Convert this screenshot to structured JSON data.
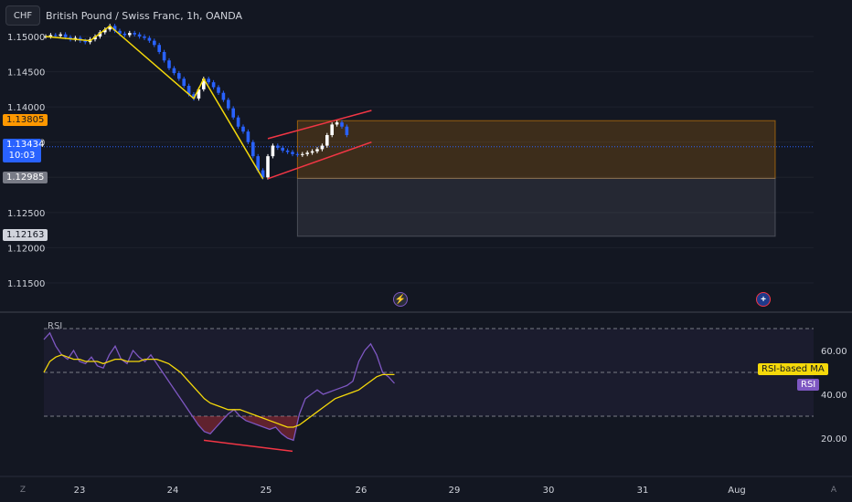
{
  "header": {
    "symbol_button": "CHF",
    "title": "British Pound / Swiss Franc, 1h, OANDA"
  },
  "colors": {
    "background": "#131722",
    "up_candle": "#ffffff",
    "down_candle": "#2962ff",
    "zigzag": "#f5d90a",
    "channel": "#f23645",
    "zone_upper": "#ff9800",
    "rsi_line": "#7e57c2",
    "rsi_ma": "#f5d90a",
    "divergence": "#f23645"
  },
  "price_labels": {
    "top_zone": "1.13805",
    "current_price": "1.13434",
    "countdown": "10:03",
    "mid_zone": "1.12985",
    "bottom_zone": "1.12163"
  },
  "rsi_labels": {
    "title": "RSI",
    "ma_tag": "RSI-based MA",
    "rsi_tag": "RSI"
  },
  "corner": {
    "left": "Z",
    "right": "A"
  },
  "icons": {
    "event_1": "lightning-icon",
    "event_2": "uk-flag-icon"
  },
  "chart_data": [
    {
      "type": "candlestick",
      "title": "British Pound / Swiss Franc, 1h, OANDA",
      "y_ticks": [
        "1.15000",
        "1.14500",
        "1.14000",
        "1.13500",
        "1.13000",
        "1.12500",
        "1.12000",
        "1.11500"
      ],
      "ylim": [
        1.1115,
        1.1525
      ],
      "x_ticks": [
        "23",
        "24",
        "25",
        "26",
        "29",
        "30",
        "31",
        "Aug"
      ],
      "series": [
        {
          "values": [
            1.15,
            1.1502,
            1.1501,
            1.1503,
            1.1499,
            1.1496,
            1.1498,
            1.1494,
            1.1492,
            1.1496,
            1.15,
            1.1506,
            1.151,
            1.1515,
            1.1508,
            1.1504,
            1.1502,
            1.1505,
            1.1503,
            1.15,
            1.1498,
            1.1494,
            1.1488,
            1.1478,
            1.1466,
            1.1455,
            1.1448,
            1.144,
            1.143,
            1.1418,
            1.1412,
            1.1425,
            1.144,
            1.1435,
            1.1428,
            1.142,
            1.141,
            1.1398,
            1.1385,
            1.1372,
            1.1365,
            1.135,
            1.133,
            1.131,
            1.13,
            1.133,
            1.1345,
            1.1342,
            1.1338,
            1.1336,
            1.1333,
            1.1332,
            1.1333,
            1.1335,
            1.1337,
            1.134,
            1.1345,
            1.136,
            1.1375,
            1.1378,
            1.1372,
            1.136
          ]
        }
      ],
      "zigzag": [
        [
          0,
          1.15
        ],
        [
          9,
          1.1494
        ],
        [
          13,
          1.1515
        ],
        [
          30,
          1.1412
        ],
        [
          32,
          1.144
        ],
        [
          44,
          1.1298
        ]
      ],
      "channel": {
        "upper": [
          [
            45,
            1.1355
          ],
          [
            66,
            1.1395
          ]
        ],
        "lower": [
          [
            45,
            1.1298
          ],
          [
            66,
            1.135
          ]
        ]
      },
      "zones": [
        {
          "from": 1.13805,
          "to": 1.12985,
          "label": "1.13805",
          "color": "#ff9800"
        },
        {
          "from": 1.12985,
          "to": 1.12163,
          "label": "1.12163",
          "color": "#787b86"
        }
      ],
      "current_price": 1.13434
    },
    {
      "type": "line",
      "title": "RSI",
      "y_ticks": [
        "60.00",
        "40.00",
        "20.00"
      ],
      "ylim": [
        15,
        75
      ],
      "bands": [
        70,
        50,
        30
      ],
      "series": [
        {
          "name": "RSI",
          "values": [
            65,
            68,
            62,
            58,
            56,
            60,
            55,
            54,
            57,
            53,
            52,
            58,
            62,
            56,
            54,
            60,
            57,
            55,
            58,
            54,
            50,
            46,
            42,
            38,
            34,
            30,
            26,
            23,
            22,
            25,
            28,
            31,
            33,
            30,
            28,
            27,
            26,
            25,
            24,
            25,
            22,
            20,
            19,
            31,
            38,
            40,
            42,
            40,
            41,
            42,
            43,
            44,
            46,
            55,
            60,
            63,
            58,
            50,
            48,
            45
          ]
        },
        {
          "name": "RSI-based MA",
          "values": [
            50,
            55,
            57,
            58,
            57,
            56,
            56,
            55,
            55,
            55,
            54,
            55,
            56,
            56,
            55,
            55,
            55,
            56,
            56,
            56,
            55,
            54,
            52,
            50,
            47,
            44,
            41,
            38,
            36,
            35,
            34,
            33,
            33,
            33,
            32,
            31,
            30,
            29,
            28,
            27,
            26,
            25,
            25,
            26,
            28,
            30,
            32,
            34,
            36,
            38,
            39,
            40,
            41,
            42,
            44,
            46,
            48,
            49,
            49,
            49
          ]
        }
      ],
      "divergence": [
        [
          23,
          19
        ],
        [
          41,
          14
        ]
      ]
    }
  ]
}
